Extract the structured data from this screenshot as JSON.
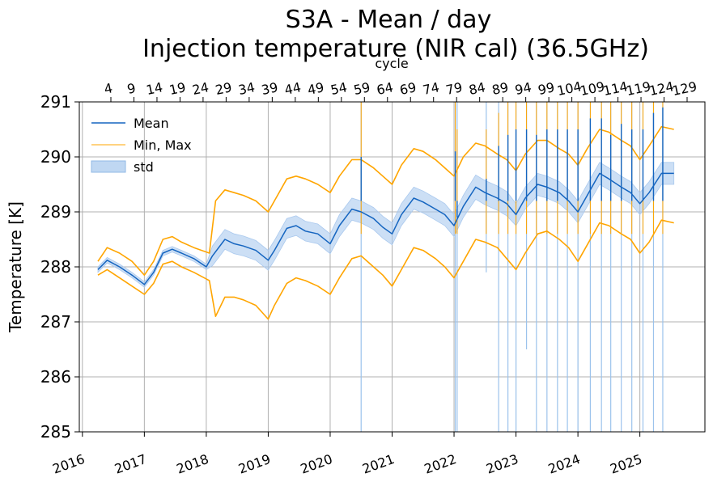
{
  "chart_data": {
    "type": "line",
    "title": "S3A - Mean / day",
    "subtitle": "Injection temperature (NIR cal) (36.5GHz)",
    "ylabel": "Temperature [K]",
    "top_axis_label": "cycle",
    "ylim": [
      285,
      291
    ],
    "xlim": [
      2015.95,
      2026.05
    ],
    "yticks": [
      285,
      286,
      287,
      288,
      289,
      290,
      291
    ],
    "xticks": [
      "2016",
      "2017",
      "2018",
      "2019",
      "2020",
      "2021",
      "2022",
      "2023",
      "2024",
      "2025"
    ],
    "cycle_ticks": [
      "4",
      "9",
      "14",
      "19",
      "24",
      "29",
      "34",
      "39",
      "44",
      "49",
      "54",
      "59",
      "64",
      "69",
      "74",
      "79",
      "84",
      "89",
      "94",
      "99",
      "104",
      "109",
      "114",
      "119",
      "124",
      "129"
    ],
    "grid": true,
    "legend_position": "upper-left",
    "legend": [
      "Mean",
      "Min, Max",
      "std"
    ],
    "colors": {
      "mean": "#1565c0",
      "minmax": "#ffa500",
      "std": "#aac9ee"
    },
    "series": [
      {
        "name": "Mean",
        "x": [
          2016.25,
          2016.4,
          2016.6,
          2016.8,
          2017.0,
          2017.15,
          2017.3,
          2017.45,
          2017.6,
          2017.8,
          2018.0,
          2018.1,
          2018.3,
          2018.45,
          2018.6,
          2018.8,
          2019.0,
          2019.1,
          2019.3,
          2019.45,
          2019.6,
          2019.8,
          2020.0,
          2020.15,
          2020.35,
          2020.5,
          2020.7,
          2020.85,
          2021.0,
          2021.15,
          2021.35,
          2021.5,
          2021.7,
          2021.85,
          2022.0,
          2022.15,
          2022.35,
          2022.5,
          2022.7,
          2022.85,
          2023.0,
          2023.15,
          2023.35,
          2023.5,
          2023.7,
          2023.85,
          2024.0,
          2024.15,
          2024.35,
          2024.5,
          2024.7,
          2024.85,
          2025.0,
          2025.15,
          2025.35,
          2025.55
        ],
        "values": [
          287.95,
          288.12,
          288.0,
          287.85,
          287.68,
          287.9,
          288.25,
          288.32,
          288.25,
          288.15,
          288.0,
          288.2,
          288.5,
          288.42,
          288.38,
          288.3,
          288.12,
          288.3,
          288.7,
          288.75,
          288.65,
          288.6,
          288.42,
          288.75,
          289.05,
          289.0,
          288.88,
          288.72,
          288.6,
          288.95,
          289.25,
          289.18,
          289.05,
          288.95,
          288.75,
          289.1,
          289.45,
          289.35,
          289.25,
          289.15,
          288.95,
          289.25,
          289.5,
          289.45,
          289.35,
          289.2,
          289.0,
          289.3,
          289.7,
          289.6,
          289.45,
          289.35,
          289.15,
          289.35,
          289.7,
          289.7
        ]
      },
      {
        "name": "Max",
        "x": [
          2016.25,
          2016.4,
          2016.6,
          2016.8,
          2017.0,
          2017.15,
          2017.3,
          2017.45,
          2017.6,
          2017.8,
          2018.05,
          2018.15,
          2018.3,
          2018.45,
          2018.6,
          2018.8,
          2019.0,
          2019.1,
          2019.3,
          2019.45,
          2019.6,
          2019.8,
          2020.0,
          2020.15,
          2020.35,
          2020.5,
          2020.7,
          2020.85,
          2021.0,
          2021.15,
          2021.35,
          2021.5,
          2021.7,
          2021.85,
          2022.0,
          2022.15,
          2022.35,
          2022.5,
          2022.7,
          2022.85,
          2023.0,
          2023.15,
          2023.35,
          2023.5,
          2023.7,
          2023.85,
          2024.0,
          2024.15,
          2024.35,
          2024.5,
          2024.7,
          2024.85,
          2025.0,
          2025.15,
          2025.35,
          2025.55
        ],
        "values": [
          288.1,
          288.35,
          288.25,
          288.1,
          287.85,
          288.1,
          288.5,
          288.55,
          288.45,
          288.35,
          288.25,
          289.2,
          289.4,
          289.35,
          289.3,
          289.2,
          289.0,
          289.2,
          289.6,
          289.65,
          289.6,
          289.5,
          289.35,
          289.65,
          289.95,
          289.95,
          289.8,
          289.65,
          289.5,
          289.85,
          290.15,
          290.1,
          289.95,
          289.8,
          289.65,
          290.0,
          290.25,
          290.2,
          290.05,
          289.95,
          289.75,
          290.05,
          290.3,
          290.3,
          290.15,
          290.05,
          289.85,
          290.15,
          290.5,
          290.45,
          290.3,
          290.2,
          289.95,
          290.2,
          290.55,
          290.5
        ]
      },
      {
        "name": "Min",
        "x": [
          2016.25,
          2016.4,
          2016.6,
          2016.8,
          2017.0,
          2017.15,
          2017.3,
          2017.45,
          2017.6,
          2017.8,
          2018.05,
          2018.15,
          2018.3,
          2018.45,
          2018.6,
          2018.8,
          2019.0,
          2019.1,
          2019.3,
          2019.45,
          2019.6,
          2019.8,
          2020.0,
          2020.15,
          2020.35,
          2020.5,
          2020.7,
          2020.85,
          2021.0,
          2021.15,
          2021.35,
          2021.5,
          2021.7,
          2021.85,
          2022.0,
          2022.15,
          2022.35,
          2022.5,
          2022.7,
          2022.85,
          2023.0,
          2023.15,
          2023.35,
          2023.5,
          2023.7,
          2023.85,
          2024.0,
          2024.15,
          2024.35,
          2024.5,
          2024.7,
          2024.85,
          2025.0,
          2025.15,
          2025.35,
          2025.55
        ],
        "values": [
          287.85,
          287.95,
          287.8,
          287.65,
          287.5,
          287.7,
          288.05,
          288.1,
          288.0,
          287.9,
          287.75,
          287.1,
          287.45,
          287.45,
          287.4,
          287.3,
          287.05,
          287.3,
          287.7,
          287.8,
          287.75,
          287.65,
          287.5,
          287.8,
          288.15,
          288.2,
          288.0,
          287.85,
          287.65,
          287.95,
          288.35,
          288.3,
          288.15,
          288.0,
          287.8,
          288.1,
          288.5,
          288.45,
          288.35,
          288.15,
          287.95,
          288.25,
          288.6,
          288.65,
          288.5,
          288.35,
          288.1,
          288.4,
          288.8,
          288.75,
          288.6,
          288.5,
          288.25,
          288.45,
          288.85,
          288.8
        ]
      },
      {
        "name": "std",
        "x": [
          2016.25,
          2016.4,
          2016.6,
          2016.8,
          2017.0,
          2017.15,
          2017.3,
          2017.45,
          2017.6,
          2017.8,
          2018.0,
          2018.1,
          2018.3,
          2018.45,
          2018.6,
          2018.8,
          2019.0,
          2019.1,
          2019.3,
          2019.45,
          2019.6,
          2019.8,
          2020.0,
          2020.15,
          2020.35,
          2020.5,
          2020.7,
          2020.85,
          2021.0,
          2021.15,
          2021.35,
          2021.5,
          2021.7,
          2021.85,
          2022.0,
          2022.15,
          2022.35,
          2022.5,
          2022.7,
          2022.85,
          2023.0,
          2023.15,
          2023.35,
          2023.5,
          2023.7,
          2023.85,
          2024.0,
          2024.15,
          2024.35,
          2024.5,
          2024.7,
          2024.85,
          2025.0,
          2025.15,
          2025.35,
          2025.55
        ],
        "values": [
          0.05,
          0.05,
          0.05,
          0.05,
          0.05,
          0.05,
          0.05,
          0.05,
          0.05,
          0.05,
          0.05,
          0.18,
          0.18,
          0.18,
          0.18,
          0.18,
          0.18,
          0.18,
          0.18,
          0.18,
          0.18,
          0.18,
          0.18,
          0.2,
          0.2,
          0.2,
          0.2,
          0.2,
          0.2,
          0.2,
          0.2,
          0.2,
          0.2,
          0.2,
          0.2,
          0.2,
          0.22,
          0.22,
          0.22,
          0.22,
          0.2,
          0.2,
          0.2,
          0.2,
          0.2,
          0.2,
          0.2,
          0.2,
          0.2,
          0.2,
          0.2,
          0.2,
          0.2,
          0.2,
          0.2,
          0.2
        ]
      }
    ],
    "spikes": [
      {
        "x": 2020.5,
        "mean": 290.0,
        "max": 291,
        "min": 285,
        "hi": 291
      },
      {
        "x": 2022.02,
        "mean": 290.1,
        "max": 291,
        "min": 285,
        "hi": 291
      },
      {
        "x": 2022.05,
        "mean": 288.9,
        "max": 290.5,
        "min": 285,
        "hi": 291
      },
      {
        "x": 2022.52,
        "mean": 289.6,
        "max": 290.5,
        "min": 287.9,
        "hi": 291
      },
      {
        "x": 2022.72,
        "mean": 290.2,
        "max": 290.8,
        "min": 285,
        "hi": 291
      },
      {
        "x": 2022.87,
        "mean": 290.4,
        "max": 291,
        "min": 285,
        "hi": 291
      },
      {
        "x": 2023.0,
        "mean": 290.5,
        "max": 291,
        "min": 285,
        "hi": 291
      },
      {
        "x": 2023.17,
        "mean": 290.5,
        "max": 291,
        "min": 286.5,
        "hi": 291
      },
      {
        "x": 2023.33,
        "mean": 290.4,
        "max": 291,
        "min": 285,
        "hi": 291
      },
      {
        "x": 2023.5,
        "mean": 290.5,
        "max": 291,
        "min": 285,
        "hi": 291
      },
      {
        "x": 2023.67,
        "mean": 290.5,
        "max": 291,
        "min": 285,
        "hi": 291
      },
      {
        "x": 2023.83,
        "mean": 290.5,
        "max": 291,
        "min": 285,
        "hi": 291
      },
      {
        "x": 2024.0,
        "mean": 290.5,
        "max": 291,
        "min": 285,
        "hi": 291
      },
      {
        "x": 2024.2,
        "mean": 290.7,
        "max": 291,
        "min": 285,
        "hi": 291
      },
      {
        "x": 2024.38,
        "mean": 290.7,
        "max": 291,
        "min": 285,
        "hi": 291
      },
      {
        "x": 2024.53,
        "mean": 290.4,
        "max": 291,
        "min": 285,
        "hi": 291
      },
      {
        "x": 2024.7,
        "mean": 290.6,
        "max": 291,
        "min": 285,
        "hi": 291
      },
      {
        "x": 2024.87,
        "mean": 290.5,
        "max": 291,
        "min": 285,
        "hi": 291
      },
      {
        "x": 2025.05,
        "mean": 290.5,
        "max": 291,
        "min": 285,
        "hi": 291
      },
      {
        "x": 2025.22,
        "mean": 290.8,
        "max": 291,
        "min": 285,
        "hi": 291
      },
      {
        "x": 2025.37,
        "mean": 290.9,
        "max": 291,
        "min": 285,
        "hi": 291
      }
    ]
  }
}
